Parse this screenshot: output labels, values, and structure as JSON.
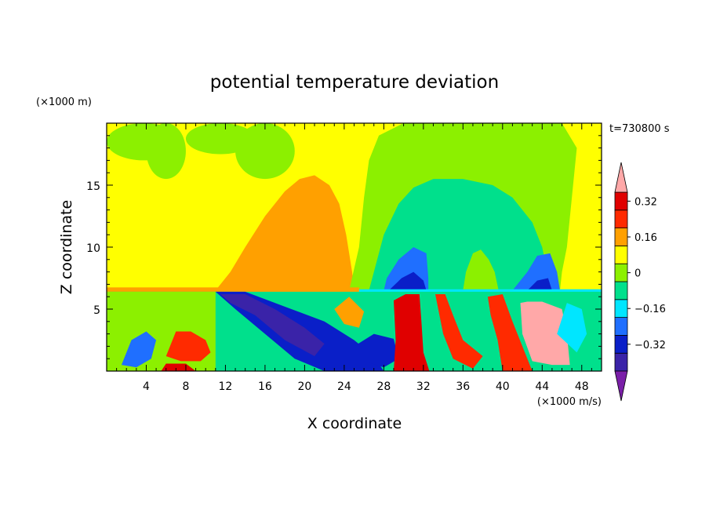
{
  "chart_data": {
    "type": "heatmap",
    "title": "potential temperature deviation",
    "xlabel": "X coordinate",
    "ylabel": "Z coordinate",
    "x_unit": "(×1000 m/s)",
    "y_unit": "(×1000 m)",
    "time_label": "t=730800 s",
    "xlim": [
      0,
      50
    ],
    "ylim": [
      0,
      20
    ],
    "x_ticks": [
      4,
      8,
      12,
      16,
      20,
      24,
      28,
      32,
      36,
      40,
      44,
      48
    ],
    "y_ticks": [
      5,
      10,
      15
    ],
    "colorbar": {
      "levels": [
        -0.44,
        -0.36,
        -0.28,
        -0.2,
        -0.12,
        -0.04,
        0.04,
        0.12,
        0.2,
        0.28,
        0.36
      ],
      "colors": [
        "#7a1fa8",
        "#3a23a8",
        "#0a1fc8",
        "#1f6fff",
        "#00e6ff",
        "#00e08c",
        "#8cf000",
        "#ffff00",
        "#ffa000",
        "#ff2a00",
        "#e00000",
        "#ffa8a8"
      ],
      "tick_values": [
        0.32,
        0.16,
        0,
        -0.16,
        -0.32
      ],
      "tick_labels": [
        "0.32",
        "0.16",
        "0",
        "−0.16",
        "−0.32"
      ]
    },
    "regions": [
      {
        "shape": "rect",
        "x": [
          0,
          50
        ],
        "z": [
          0,
          20
        ],
        "value": 0.08
      },
      {
        "shape": "blob",
        "x": [
          0,
          7.5
        ],
        "z": [
          17,
          20
        ],
        "value": 0.0
      },
      {
        "shape": "blob",
        "x": [
          4,
          8
        ],
        "z": [
          15.5,
          20
        ],
        "value": 0.0
      },
      {
        "shape": "blob",
        "x": [
          8,
          15
        ],
        "z": [
          17.5,
          20
        ],
        "value": 0.0
      },
      {
        "shape": "blob",
        "x": [
          13,
          19
        ],
        "z": [
          15.5,
          20
        ],
        "value": 0.0
      },
      {
        "shape": "poly",
        "points": [
          [
            11,
            6.5
          ],
          [
            12.5,
            8
          ],
          [
            14,
            10
          ],
          [
            16,
            12.5
          ],
          [
            18,
            14.5
          ],
          [
            19.5,
            15.5
          ],
          [
            21,
            15.8
          ],
          [
            22.5,
            15
          ],
          [
            23.5,
            13.5
          ],
          [
            24.2,
            11
          ],
          [
            24.8,
            8
          ],
          [
            25,
            6.5
          ]
        ],
        "value": 0.16
      },
      {
        "shape": "poly",
        "points": [
          [
            24.5,
            6.5
          ],
          [
            25.5,
            10
          ],
          [
            26,
            14
          ],
          [
            26.5,
            17
          ],
          [
            27.5,
            19
          ],
          [
            30,
            20
          ],
          [
            46,
            20
          ],
          [
            47.5,
            18
          ],
          [
            47,
            14
          ],
          [
            46.5,
            10
          ],
          [
            46,
            8
          ],
          [
            45.8,
            6.5
          ]
        ],
        "value": 0.0
      },
      {
        "shape": "poly",
        "points": [
          [
            26.5,
            6.5
          ],
          [
            27,
            8
          ],
          [
            28,
            11
          ],
          [
            29.5,
            13.5
          ],
          [
            31,
            14.8
          ],
          [
            33,
            15.5
          ],
          [
            36,
            15.5
          ],
          [
            39,
            15
          ],
          [
            41,
            14
          ],
          [
            43,
            12
          ],
          [
            44,
            10
          ],
          [
            44.5,
            8
          ],
          [
            44.8,
            6.5
          ]
        ],
        "value": -0.08
      },
      {
        "shape": "poly",
        "points": [
          [
            36,
            6.5
          ],
          [
            36.3,
            8
          ],
          [
            37,
            9.5
          ],
          [
            37.8,
            9.8
          ],
          [
            38.6,
            9
          ],
          [
            39.2,
            8
          ],
          [
            39.6,
            6.5
          ]
        ],
        "value": 0.0
      },
      {
        "shape": "poly",
        "points": [
          [
            28,
            6.5
          ],
          [
            28.3,
            7.5
          ],
          [
            29.5,
            9
          ],
          [
            31,
            10
          ],
          [
            32.3,
            9.5
          ],
          [
            32.5,
            7.5
          ],
          [
            32.5,
            6.5
          ]
        ],
        "value": -0.24
      },
      {
        "shape": "poly",
        "points": [
          [
            41,
            6.5
          ],
          [
            41.5,
            7
          ],
          [
            42.5,
            8
          ],
          [
            43.5,
            9.3
          ],
          [
            44.8,
            9.5
          ],
          [
            45.5,
            8
          ],
          [
            45.8,
            6.5
          ]
        ],
        "value": -0.24
      },
      {
        "shape": "poly",
        "points": [
          [
            28.5,
            6.5
          ],
          [
            29.8,
            7.5
          ],
          [
            31,
            8
          ],
          [
            32,
            7.3
          ],
          [
            32.3,
            6.5
          ]
        ],
        "value": -0.32
      },
      {
        "shape": "poly",
        "points": [
          [
            42.5,
            6.5
          ],
          [
            43.5,
            7.3
          ],
          [
            44.6,
            7.5
          ],
          [
            45,
            6.5
          ]
        ],
        "value": -0.32
      },
      {
        "shape": "rect",
        "x": [
          0,
          25.5
        ],
        "z": [
          6.35,
          6.75
        ],
        "value": 0.16
      },
      {
        "shape": "rect",
        "x": [
          25.5,
          50
        ],
        "z": [
          6.35,
          6.6
        ],
        "value": -0.16
      },
      {
        "shape": "rect",
        "x": [
          0,
          50
        ],
        "z": [
          0,
          6.4
        ],
        "value": -0.08
      },
      {
        "shape": "rect",
        "x": [
          0,
          11
        ],
        "z": [
          0,
          6.4
        ],
        "value": 0.0
      },
      {
        "shape": "poly",
        "points": [
          [
            11,
            6.4
          ],
          [
            14,
            6.4
          ],
          [
            18,
            5.2
          ],
          [
            22,
            4
          ],
          [
            25,
            2.5
          ],
          [
            27,
            1.2
          ],
          [
            28,
            0
          ],
          [
            22,
            0
          ],
          [
            19,
            1
          ],
          [
            16,
            3
          ],
          [
            13,
            5
          ]
        ],
        "value": -0.36
      },
      {
        "shape": "poly",
        "points": [
          [
            11.5,
            6.2
          ],
          [
            14,
            6.2
          ],
          [
            17,
            5
          ],
          [
            20,
            3.5
          ],
          [
            22,
            2.2
          ],
          [
            21,
            1.2
          ],
          [
            18,
            2.5
          ],
          [
            15,
            4.5
          ],
          [
            12.5,
            5.5
          ]
        ],
        "value": -0.44
      },
      {
        "shape": "poly",
        "points": [
          [
            25,
            2
          ],
          [
            27,
            3
          ],
          [
            29,
            2.6
          ],
          [
            29.5,
            1
          ],
          [
            28,
            0.3
          ],
          [
            26,
            0.8
          ]
        ],
        "value": -0.36
      },
      {
        "shape": "poly",
        "points": [
          [
            1.5,
            0.5
          ],
          [
            2.5,
            2.5
          ],
          [
            4,
            3.2
          ],
          [
            5,
            2.5
          ],
          [
            4.5,
            1
          ],
          [
            3,
            0.3
          ]
        ],
        "value": -0.24
      },
      {
        "shape": "poly",
        "points": [
          [
            6,
            1.2
          ],
          [
            7,
            3.2
          ],
          [
            8.5,
            3.2
          ],
          [
            10,
            2.5
          ],
          [
            10.5,
            1.5
          ],
          [
            9.5,
            0.8
          ],
          [
            7.5,
            0.8
          ]
        ],
        "value": 0.24
      },
      {
        "shape": "poly",
        "points": [
          [
            5.5,
            0
          ],
          [
            6,
            0.6
          ],
          [
            8,
            0.6
          ],
          [
            9,
            0
          ]
        ],
        "value": 0.32
      },
      {
        "shape": "poly",
        "points": [
          [
            29,
            5.7
          ],
          [
            30.2,
            6.2
          ],
          [
            31.6,
            6.2
          ],
          [
            31.8,
            4
          ],
          [
            32,
            1.5
          ],
          [
            32.6,
            0
          ],
          [
            29,
            0
          ],
          [
            29.2,
            2.5
          ]
        ],
        "value": 0.32
      },
      {
        "shape": "poly",
        "points": [
          [
            33.2,
            6.2
          ],
          [
            34.2,
            6.2
          ],
          [
            35,
            4.5
          ],
          [
            36,
            2.5
          ],
          [
            38,
            1.2
          ],
          [
            37,
            0.2
          ],
          [
            35,
            1
          ],
          [
            34,
            3
          ]
        ],
        "value": 0.24
      },
      {
        "shape": "poly",
        "points": [
          [
            38.5,
            6
          ],
          [
            40,
            6.2
          ],
          [
            41,
            4
          ],
          [
            42,
            2
          ],
          [
            43,
            0
          ],
          [
            40,
            0
          ],
          [
            39.5,
            2.5
          ],
          [
            38.8,
            4.5
          ]
        ],
        "value": 0.24
      },
      {
        "shape": "poly",
        "points": [
          [
            41.8,
            5.5
          ],
          [
            42.5,
            5.6
          ],
          [
            44,
            5.6
          ],
          [
            46,
            5
          ],
          [
            46.5,
            3
          ],
          [
            46.8,
            0.5
          ],
          [
            45,
            0.5
          ],
          [
            43,
            0.8
          ],
          [
            42,
            3
          ]
        ],
        "value": 0.42
      },
      {
        "shape": "poly",
        "points": [
          [
            23,
            5
          ],
          [
            24.5,
            6
          ],
          [
            26,
            4.8
          ],
          [
            25.5,
            3.5
          ],
          [
            24,
            3.8
          ]
        ],
        "value": 0.16
      },
      {
        "shape": "poly",
        "points": [
          [
            45.5,
            3
          ],
          [
            46.5,
            5.5
          ],
          [
            48,
            5
          ],
          [
            48.5,
            3
          ],
          [
            47.5,
            1.5
          ]
        ],
        "value": -0.16
      }
    ]
  }
}
